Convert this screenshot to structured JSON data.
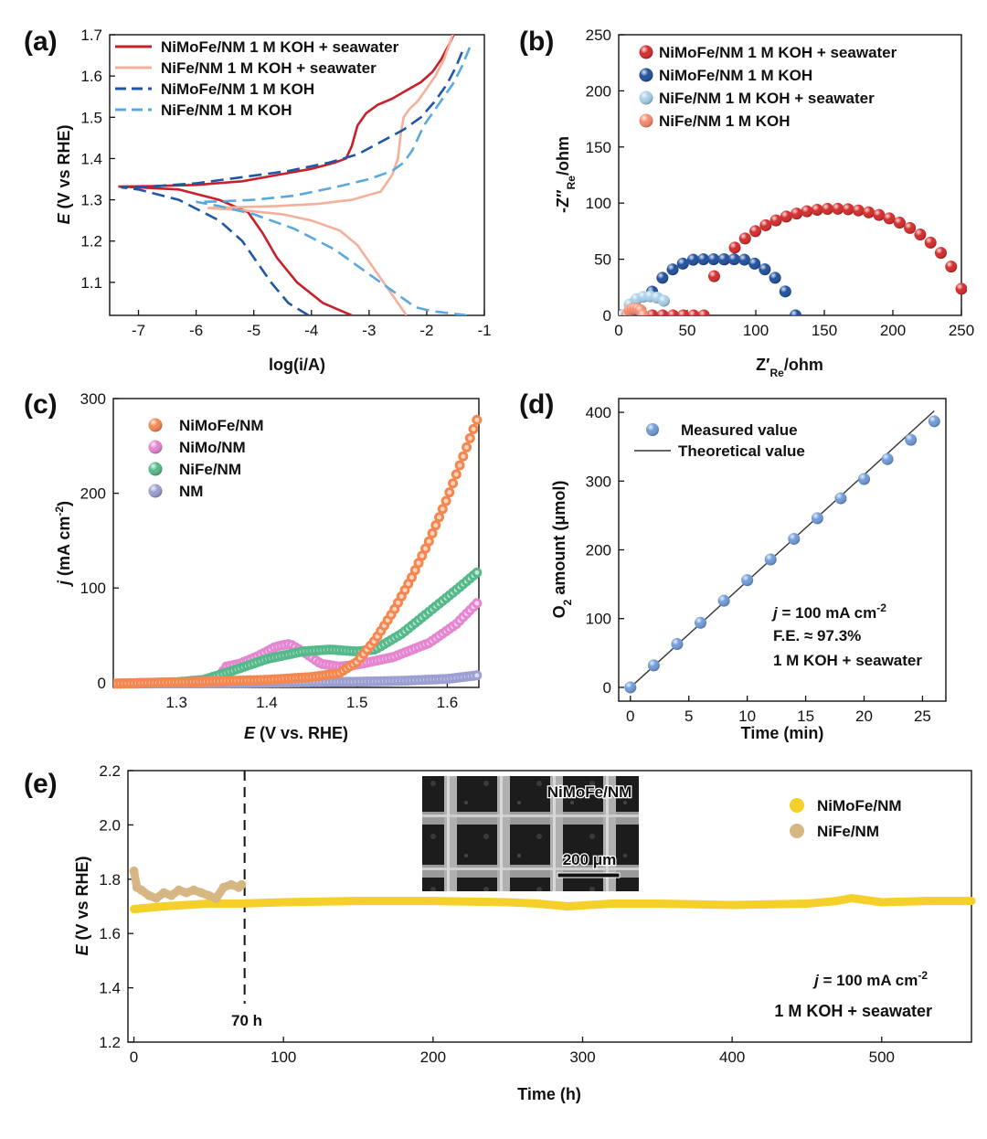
{
  "panels": {
    "a": {
      "label": "(a)"
    },
    "b": {
      "label": "(b)"
    },
    "c": {
      "label": "(c)"
    },
    "d": {
      "label": "(d)"
    },
    "e": {
      "label": "(e)"
    }
  },
  "chart_data": [
    {
      "id": "a",
      "type": "line",
      "title": "",
      "xlabel": "log(i/A)",
      "ylabel": "E (V vs RHE)",
      "xlim": [
        -7.5,
        -1
      ],
      "ylim": [
        1.02,
        1.7
      ],
      "xticks": [
        -7,
        -6,
        -5,
        -4,
        -3,
        -2,
        -1
      ],
      "yticks": [
        1.1,
        1.2,
        1.3,
        1.4,
        1.5,
        1.6,
        1.7
      ],
      "legend_position": "top-left",
      "series": [
        {
          "name": "NiMoFe/NM 1 M KOH + seawater",
          "color": "#c8202a",
          "dash": "solid",
          "x": [
            -3.3,
            -3.8,
            -4.25,
            -4.6,
            -4.85,
            -5.1,
            -5.6,
            -6.3,
            -7.0,
            -7.35,
            -6.8,
            -6.0,
            -5.2,
            -4.6,
            -4.0,
            -3.6,
            -3.4,
            -3.3,
            -3.2,
            -3.05,
            -2.85,
            -2.6,
            -2.35,
            -2.1,
            -1.9,
            -1.75,
            -1.6,
            -1.5
          ],
          "y": [
            1.02,
            1.05,
            1.1,
            1.16,
            1.22,
            1.27,
            1.3,
            1.325,
            1.33,
            1.332,
            1.333,
            1.336,
            1.345,
            1.36,
            1.375,
            1.39,
            1.4,
            1.43,
            1.48,
            1.51,
            1.53,
            1.545,
            1.565,
            1.585,
            1.61,
            1.64,
            1.68,
            1.71
          ]
        },
        {
          "name": "NiFe/NM 1 M KOH + seawater",
          "color": "#f4b09a",
          "dash": "solid",
          "x": [
            -2.35,
            -2.5,
            -2.7,
            -2.95,
            -3.2,
            -3.5,
            -4.0,
            -4.5,
            -5.2,
            -5.8,
            -5.3,
            -4.6,
            -3.9,
            -3.3,
            -2.8,
            -2.6,
            -2.5,
            -2.45,
            -2.4,
            -2.3,
            -2.15,
            -2.0,
            -1.85,
            -1.7,
            -1.55
          ],
          "y": [
            1.02,
            1.05,
            1.09,
            1.14,
            1.19,
            1.225,
            1.25,
            1.265,
            1.275,
            1.28,
            1.282,
            1.285,
            1.29,
            1.3,
            1.32,
            1.36,
            1.4,
            1.46,
            1.5,
            1.52,
            1.54,
            1.57,
            1.6,
            1.64,
            1.7
          ]
        },
        {
          "name": "NiMoFe/NM 1 M KOH",
          "color": "#1f57a4",
          "dash": "dashed",
          "x": [
            -4.05,
            -4.4,
            -4.7,
            -4.95,
            -5.2,
            -5.6,
            -6.3,
            -7.0,
            -7.3,
            -6.8,
            -6.0,
            -5.2,
            -4.4,
            -3.7,
            -3.2,
            -2.8,
            -2.4,
            -2.1,
            -1.85,
            -1.65,
            -1.5,
            -1.35
          ],
          "y": [
            1.02,
            1.05,
            1.1,
            1.15,
            1.2,
            1.25,
            1.3,
            1.325,
            1.33,
            1.332,
            1.34,
            1.355,
            1.37,
            1.39,
            1.41,
            1.44,
            1.47,
            1.5,
            1.54,
            1.58,
            1.62,
            1.67
          ]
        },
        {
          "name": "NiFe/NM 1 M KOH",
          "color": "#5aa8dc",
          "dash": "dashed",
          "x": [
            -1.3,
            -1.6,
            -1.9,
            -2.2,
            -2.5,
            -3.0,
            -3.6,
            -4.3,
            -5.0,
            -5.6,
            -6.0,
            -5.6,
            -5.0,
            -4.3,
            -3.6,
            -3.0,
            -2.6,
            -2.4,
            -2.25,
            -2.15,
            -2.05,
            -1.9,
            -1.75,
            -1.55,
            -1.4,
            -1.25
          ],
          "y": [
            1.02,
            1.025,
            1.03,
            1.04,
            1.07,
            1.12,
            1.18,
            1.23,
            1.265,
            1.285,
            1.295,
            1.296,
            1.3,
            1.31,
            1.33,
            1.35,
            1.37,
            1.39,
            1.42,
            1.45,
            1.48,
            1.51,
            1.54,
            1.58,
            1.62,
            1.67
          ]
        }
      ]
    },
    {
      "id": "b",
      "type": "scatter",
      "title": "",
      "xlabel": "Z'Re/ohm",
      "ylabel": "-Z''Re/ohm",
      "xlim": [
        0,
        250
      ],
      "ylim": [
        0,
        250
      ],
      "xticks": [
        0,
        50,
        100,
        150,
        200,
        250
      ],
      "yticks": [
        0,
        50,
        100,
        150,
        200,
        250
      ],
      "legend_position": "top-left",
      "series": [
        {
          "name": "NiMoFe/NM 1 M KOH + seawater",
          "color": "#d42a2a",
          "center": 158,
          "radius": 95,
          "x_from": 2,
          "x_to": 250
        },
        {
          "name": "NiMoFe/NM 1 M KOH",
          "color": "#1e4f9c",
          "center": 73,
          "radius": 53,
          "x_from": 2,
          "x_to": 129,
          "y_cap": 50
        },
        {
          "name": "NiFe/NM 1 M KOH + seawater",
          "color": "#a8cfe8",
          "center": 22,
          "radius": 17,
          "x_from": 3,
          "x_to": 33
        },
        {
          "name": "NiFe/NM 1 M KOH",
          "color": "#f58a6c",
          "center": 12,
          "radius": 6,
          "x_from": 6,
          "x_to": 18
        }
      ]
    },
    {
      "id": "c",
      "type": "scatter",
      "title": "",
      "xlabel": "E (V vs. RHE)",
      "ylabel": "j (mA cm-2)",
      "xlim": [
        1.23,
        1.635
      ],
      "ylim": [
        -5,
        300
      ],
      "xticks": [
        1.3,
        1.4,
        1.5,
        1.6
      ],
      "yticks": [
        0,
        100,
        200,
        300
      ],
      "legend_position": "top-left",
      "series": [
        {
          "name": "NiMoFe/NM",
          "color": "#f4874f",
          "x": [
            1.23,
            1.3,
            1.4,
            1.45,
            1.48,
            1.5,
            1.52,
            1.54,
            1.56,
            1.58,
            1.6,
            1.62,
            1.635
          ],
          "y": [
            -1,
            0.5,
            3,
            6,
            10,
            22,
            45,
            75,
            110,
            150,
            195,
            245,
            283
          ]
        },
        {
          "name": "NiMo/NM",
          "color": "#e486d0",
          "x": [
            1.23,
            1.3,
            1.345,
            1.355,
            1.37,
            1.39,
            1.41,
            1.425,
            1.44,
            1.46,
            1.48,
            1.5,
            1.54,
            1.58,
            1.61,
            1.635
          ],
          "y": [
            -1,
            0.5,
            3,
            17,
            20,
            28,
            38,
            41,
            33,
            20,
            17,
            19,
            27,
            42,
            62,
            86
          ]
        },
        {
          "name": "NiFe/NM",
          "color": "#55b98b",
          "x": [
            1.23,
            1.3,
            1.33,
            1.36,
            1.4,
            1.44,
            1.47,
            1.5,
            1.52,
            1.55,
            1.58,
            1.61,
            1.635
          ],
          "y": [
            -1,
            0.5,
            3,
            12,
            25,
            33,
            35,
            33,
            35,
            52,
            75,
            98,
            118
          ]
        },
        {
          "name": "NM",
          "color": "#9b9fd1",
          "x": [
            1.23,
            1.4,
            1.5,
            1.55,
            1.6,
            1.635
          ],
          "y": [
            -1,
            0,
            1,
            2,
            4,
            8
          ]
        }
      ]
    },
    {
      "id": "d",
      "type": "scatter",
      "title": "",
      "xlabel": "Time (min)",
      "ylabel": "O2 amount (μmol)",
      "xlim": [
        -1,
        27
      ],
      "ylim": [
        -20,
        420
      ],
      "xticks": [
        0,
        5,
        10,
        15,
        20,
        25
      ],
      "yticks": [
        0,
        100,
        200,
        300,
        400
      ],
      "legend_position": "top-left",
      "series": [
        {
          "name": "Measured value",
          "color": "#6f9bd8",
          "x": [
            0,
            2,
            4,
            6,
            8,
            10,
            12,
            14,
            16,
            18,
            20,
            22,
            24,
            26
          ],
          "y": [
            0,
            32,
            63,
            94,
            126,
            156,
            186,
            216,
            246,
            275,
            303,
            332,
            360,
            387
          ]
        },
        {
          "name": "Theoretical value",
          "color": "#333333",
          "x": [
            0,
            26
          ],
          "y": [
            0,
            402
          ]
        }
      ],
      "annotations": [
        "j = 100 mA cm-2",
        "F.E. ≈ 97.3%",
        "1 M KOH + seawater"
      ]
    },
    {
      "id": "e",
      "type": "line",
      "title": "",
      "xlabel": "Time (h)",
      "ylabel": "E (V vs RHE)",
      "xlim": [
        -4,
        560
      ],
      "ylim": [
        1.2,
        2.2
      ],
      "xticks": [
        0,
        100,
        200,
        300,
        400,
        500
      ],
      "yticks": [
        1.2,
        1.4,
        1.6,
        1.8,
        2.0,
        2.2
      ],
      "legend_position": "top-right",
      "series": [
        {
          "name": "NiMoFe/NM",
          "color": "#f5cf2a",
          "x": [
            0,
            20,
            50,
            70,
            100,
            150,
            200,
            250,
            270,
            290,
            320,
            350,
            400,
            450,
            470,
            480,
            500,
            530,
            560
          ],
          "y": [
            1.69,
            1.7,
            1.71,
            1.71,
            1.715,
            1.72,
            1.72,
            1.715,
            1.71,
            1.7,
            1.71,
            1.71,
            1.705,
            1.71,
            1.72,
            1.73,
            1.715,
            1.72,
            1.72
          ]
        },
        {
          "name": "NiFe/NM",
          "color": "#d6b783",
          "x": [
            0,
            2,
            5,
            10,
            15,
            20,
            25,
            30,
            35,
            40,
            45,
            50,
            55,
            60,
            65,
            70,
            72
          ],
          "y": [
            1.83,
            1.77,
            1.76,
            1.74,
            1.73,
            1.75,
            1.74,
            1.76,
            1.75,
            1.76,
            1.75,
            1.74,
            1.73,
            1.77,
            1.78,
            1.77,
            1.78
          ]
        }
      ],
      "annotations": [
        "70 h",
        "j = 100 mA cm-2",
        "1 M KOH + seawater"
      ],
      "marker_line_x": 74,
      "inset": {
        "title": "NiMoFe/NM",
        "scale_bar": "200 μm"
      }
    }
  ]
}
